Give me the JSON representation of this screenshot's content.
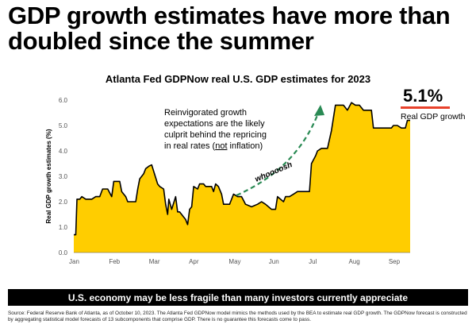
{
  "headline": {
    "line1": "GDP growth estimates have more than",
    "line2": "doubled since the summer"
  },
  "chart_data": {
    "type": "area",
    "title": "Atlanta Fed GDPNow real U.S. GDP estimates for 2023",
    "ylabel": "Real GDP growth estimates (%)",
    "xlabel": "",
    "ylim": [
      0,
      6
    ],
    "yticks": [
      "0.0",
      "1.0",
      "2.0",
      "3.0",
      "4.0",
      "5.0",
      "6.0"
    ],
    "month_labels": [
      "Jan",
      "Feb",
      "Mar",
      "Apr",
      "May",
      "Jun",
      "Jul",
      "Aug",
      "Sep"
    ],
    "x_unit": "month (1 = Jan 1)",
    "series": [
      {
        "color": "#ffcd00",
        "points": [
          [
            1.0,
            0.7
          ],
          [
            1.05,
            0.7
          ],
          [
            1.08,
            2.1
          ],
          [
            1.15,
            2.1
          ],
          [
            1.2,
            2.2
          ],
          [
            1.3,
            2.1
          ],
          [
            1.45,
            2.1
          ],
          [
            1.55,
            2.2
          ],
          [
            1.65,
            2.2
          ],
          [
            1.72,
            2.5
          ],
          [
            1.85,
            2.5
          ],
          [
            1.95,
            2.2
          ],
          [
            2.0,
            2.8
          ],
          [
            2.15,
            2.8
          ],
          [
            2.2,
            2.4
          ],
          [
            2.3,
            2.2
          ],
          [
            2.35,
            2.0
          ],
          [
            2.55,
            2.0
          ],
          [
            2.6,
            2.5
          ],
          [
            2.65,
            2.9
          ],
          [
            2.75,
            3.1
          ],
          [
            2.8,
            3.3
          ],
          [
            2.88,
            3.4
          ],
          [
            2.95,
            3.45
          ],
          [
            3.0,
            3.2
          ],
          [
            3.1,
            2.7
          ],
          [
            3.15,
            2.6
          ],
          [
            3.25,
            2.5
          ],
          [
            3.3,
            1.9
          ],
          [
            3.35,
            1.5
          ],
          [
            3.38,
            2.1
          ],
          [
            3.45,
            1.7
          ],
          [
            3.55,
            2.2
          ],
          [
            3.6,
            1.6
          ],
          [
            3.65,
            1.6
          ],
          [
            3.75,
            1.4
          ],
          [
            3.8,
            1.3
          ],
          [
            3.85,
            1.1
          ],
          [
            3.9,
            1.7
          ],
          [
            3.95,
            1.8
          ],
          [
            4.0,
            2.6
          ],
          [
            4.1,
            2.5
          ],
          [
            4.15,
            2.7
          ],
          [
            4.25,
            2.7
          ],
          [
            4.3,
            2.6
          ],
          [
            4.45,
            2.6
          ],
          [
            4.5,
            2.4
          ],
          [
            4.55,
            2.7
          ],
          [
            4.62,
            2.6
          ],
          [
            4.7,
            2.3
          ],
          [
            4.75,
            1.9
          ],
          [
            4.9,
            1.9
          ],
          [
            5.0,
            2.3
          ],
          [
            5.1,
            2.2
          ],
          [
            5.2,
            2.2
          ],
          [
            5.3,
            1.9
          ],
          [
            5.45,
            1.8
          ],
          [
            5.6,
            1.9
          ],
          [
            5.7,
            2.0
          ],
          [
            5.8,
            1.9
          ],
          [
            5.95,
            1.7
          ],
          [
            6.05,
            1.7
          ],
          [
            6.1,
            2.2
          ],
          [
            6.25,
            2.0
          ],
          [
            6.3,
            2.2
          ],
          [
            6.4,
            2.2
          ],
          [
            6.5,
            2.3
          ],
          [
            6.6,
            2.4
          ],
          [
            6.75,
            2.4
          ],
          [
            6.85,
            2.4
          ],
          [
            6.9,
            2.4
          ],
          [
            6.95,
            3.5
          ],
          [
            7.05,
            3.8
          ],
          [
            7.1,
            4.0
          ],
          [
            7.2,
            4.1
          ],
          [
            7.35,
            4.1
          ],
          [
            7.45,
            4.8
          ],
          [
            7.55,
            5.8
          ],
          [
            7.65,
            5.8
          ],
          [
            7.75,
            5.8
          ],
          [
            7.85,
            5.6
          ],
          [
            7.95,
            5.9
          ],
          [
            8.05,
            5.8
          ],
          [
            8.15,
            5.8
          ],
          [
            8.25,
            5.6
          ],
          [
            8.35,
            5.6
          ],
          [
            8.45,
            5.6
          ],
          [
            8.5,
            4.9
          ],
          [
            8.65,
            4.9
          ],
          [
            8.75,
            4.9
          ],
          [
            8.85,
            4.9
          ],
          [
            8.95,
            4.9
          ],
          [
            9.0,
            5.0
          ],
          [
            9.1,
            5.0
          ],
          [
            9.2,
            4.9
          ],
          [
            9.3,
            4.9
          ],
          [
            9.35,
            5.2
          ],
          [
            9.42,
            5.2
          ]
        ]
      }
    ],
    "grid": false,
    "legend": "none"
  },
  "callout": {
    "value": "5.1%",
    "label": "Real GDP growth"
  },
  "annotation": {
    "line1": "Reinvigorated growth",
    "line2": "expectations are the likely",
    "line3": "culprit behind the repricing",
    "line4_pre": "in real rates (",
    "line4_u": "not",
    "line4_post": " inflation)",
    "whoosh": "whoooosh"
  },
  "colors": {
    "fill": "#ffcd00",
    "line": "#000000",
    "accent": "#e8412b",
    "arrow": "#2a8a54"
  },
  "banner": "U.S. economy may be less fragile than many investors currently appreciate",
  "source": "Source: Federal Reserve Bank of Atlanta, as of October 10, 2023. The Atlanta Fed GDPNow model mimics the methods used by the BEA to estimate real GDP growth. The GDPNow forecast is constructed by aggregating statistical model forecasts of 13 subcomponents that comprise GDP. There is no guarantee this forecasts come to pass."
}
